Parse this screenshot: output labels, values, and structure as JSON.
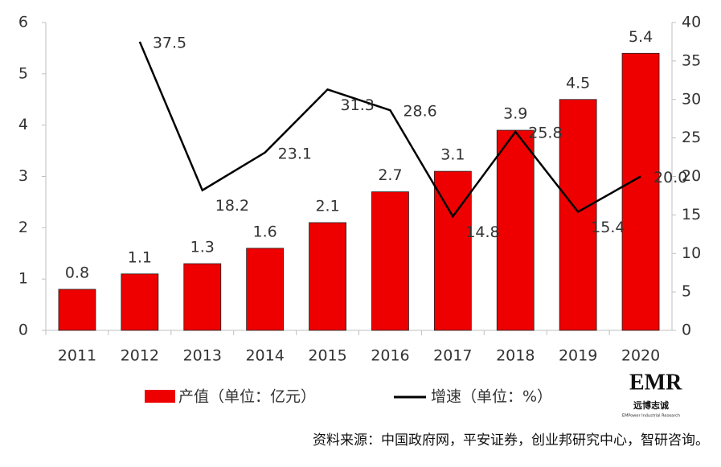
{
  "chart_data": {
    "type": "bar",
    "categories": [
      "2011",
      "2012",
      "2013",
      "2014",
      "2015",
      "2016",
      "2017",
      "2018",
      "2019",
      "2020"
    ],
    "series": [
      {
        "name": "产值（单位：亿元）",
        "type": "bar",
        "color": "#ee0000",
        "values": [
          0.8,
          1.1,
          1.3,
          1.6,
          2.1,
          2.7,
          3.1,
          3.9,
          4.5,
          5.4
        ]
      },
      {
        "name": "增速（单位：%）",
        "type": "line",
        "axis": "y2",
        "color": "#000000",
        "values": [
          null,
          37.5,
          18.2,
          23.1,
          31.3,
          28.6,
          14.8,
          25.8,
          15.4,
          20.0
        ],
        "value_labels": [
          null,
          "37.5",
          "18.2",
          "23.1",
          "31.3",
          "28.6",
          "14.8",
          "25.8",
          "15.4",
          "20.0"
        ]
      }
    ],
    "ylim": [
      0,
      6
    ],
    "yticks": [
      0,
      1,
      2,
      3,
      4,
      5,
      6
    ],
    "y2lim": [
      0,
      40
    ],
    "y2ticks": [
      0,
      5,
      10,
      15,
      20,
      25,
      30,
      35,
      40
    ],
    "source": "资料来源：中国政府网，平安证券，创业邦研究中心，智研咨询。",
    "logo": {
      "mark": "EMR",
      "name": "远博志诚",
      "tagline": "EMPower Industrial Research"
    }
  }
}
